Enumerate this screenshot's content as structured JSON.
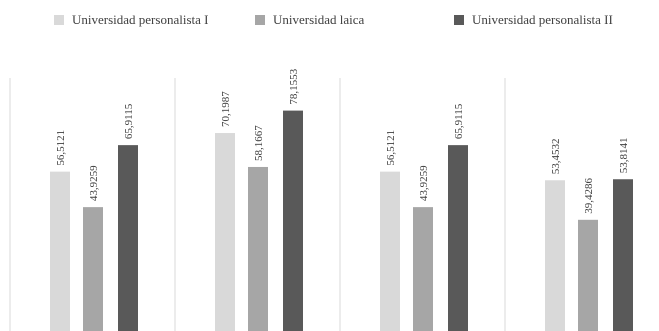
{
  "chart_data": {
    "type": "bar",
    "title": "",
    "xlabel": "",
    "ylabel": "",
    "categories": [
      "",
      "",
      "",
      ""
    ],
    "ylim": [
      0,
      100
    ],
    "grid": false,
    "legend_position": "top",
    "series": [
      {
        "name": "Universidad personalista I",
        "color": "#d9d9d9",
        "values": [
          56.5121,
          70.1987,
          56.5121,
          53.4532
        ],
        "labels": [
          "56,5121",
          "70,1987",
          "56,5121",
          "53,4532"
        ]
      },
      {
        "name": "Universidad laica",
        "color": "#a6a6a6",
        "values": [
          43.9259,
          58.1667,
          43.9259,
          39.4286
        ],
        "labels": [
          "43,9259",
          "58,1667",
          "43,9259",
          "39,4286"
        ]
      },
      {
        "name": "Universidad personalista II",
        "color": "#595959",
        "values": [
          65.9115,
          78.1553,
          65.9115,
          53.8141
        ],
        "labels": [
          "65,9115",
          "78,1553",
          "65,9115",
          "53,8141"
        ]
      }
    ]
  }
}
